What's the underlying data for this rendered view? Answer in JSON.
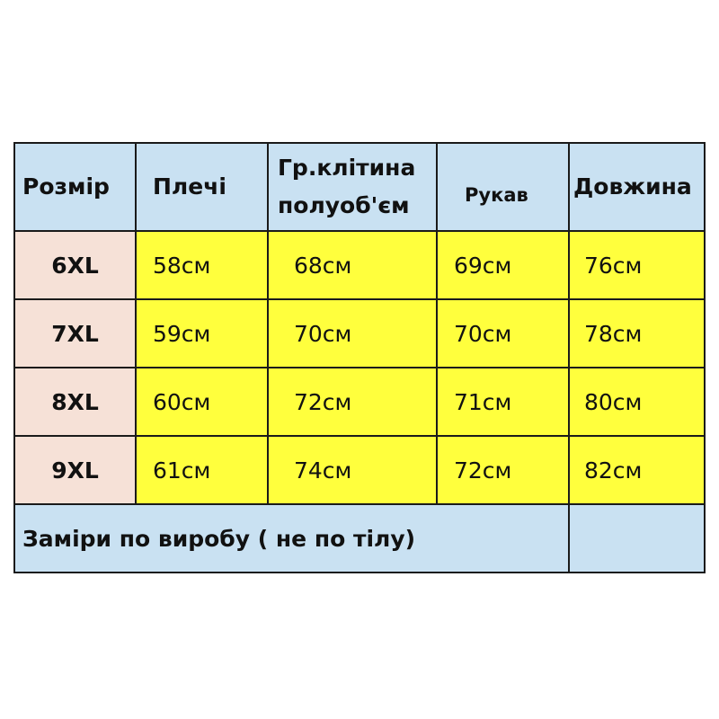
{
  "headers": [
    "Розмір",
    "Плечі",
    "Гр.клітина\nполуоб'єм",
    "Рукав",
    "Довжина"
  ],
  "rows": [
    [
      "6XL",
      "58см",
      "68см",
      "69см",
      "76см"
    ],
    [
      "7XL",
      "59см",
      "70см",
      "70см",
      "78см"
    ],
    [
      "8XL",
      "60см",
      "72см",
      "71см",
      "80см"
    ],
    [
      "9XL",
      "61см",
      "74см",
      "72см",
      "82см"
    ]
  ],
  "footer": "Заміри по виробу ( не по тілу)",
  "colors": {
    "header": "#c9e1f2",
    "size_column": "#f6e1d7",
    "values": "#ffff3d"
  }
}
